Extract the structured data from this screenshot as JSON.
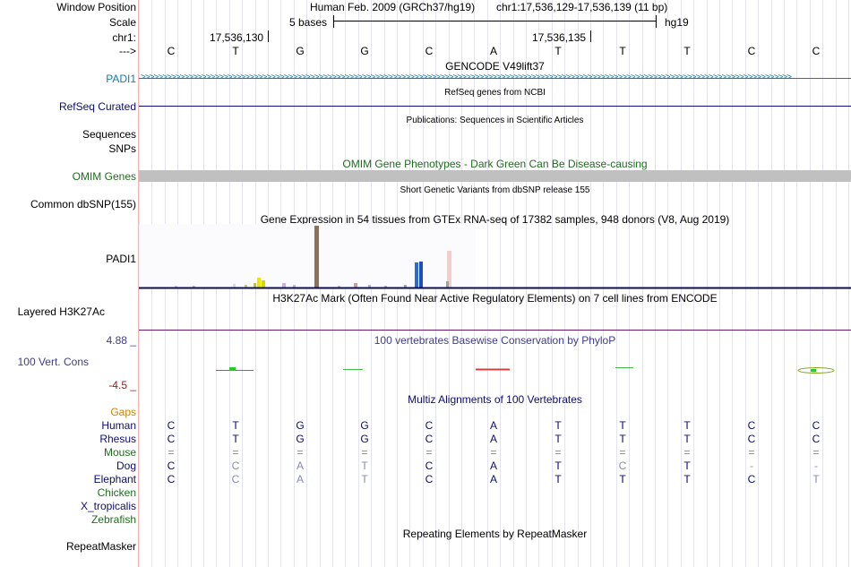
{
  "labels": {
    "window_position": "Window Position",
    "scale": "Scale",
    "chrom": "chr1:",
    "arrow": "--->",
    "padi1_gencode": "PADI1",
    "refseq": "RefSeq Curated",
    "sequences": "Sequences",
    "snps": "SNPs",
    "omim": "OMIM Genes",
    "common_dbsnp": "Common dbSNP(155)",
    "padi1_gtex": "PADI1",
    "h3k27ac": "Layered H3K27Ac",
    "cons_max": "4.88 _",
    "cons": "100 Vert. Cons",
    "cons_min": "-4.5 _",
    "gaps": "Gaps",
    "species": [
      "Human",
      "Rhesus",
      "Mouse",
      "Dog",
      "Elephant",
      "Chicken",
      "X_tropicalis",
      "Zebrafish"
    ],
    "repeatmasker": "RepeatMasker"
  },
  "header": {
    "assembly": "Human Feb. 2009 (GRCh37/hg19)",
    "position": "chr1:17,536,129-17,536,139 (11 bp)",
    "scale_text": "5 bases",
    "db": "hg19",
    "coord1": "17,536,130",
    "coord2": "17,536,135"
  },
  "bases": [
    "C",
    "T",
    "G",
    "G",
    "C",
    "A",
    "T",
    "T",
    "T",
    "C",
    "C"
  ],
  "tracks": {
    "gencode": "GENCODE V49lift37",
    "refseq": "RefSeq genes from NCBI",
    "publications": "Publications: Sequences in Scientific Articles",
    "omim": "OMIM Gene Phenotypes - Dark Green Can Be Disease-causing",
    "dbsnp": "Short Genetic Variants from dbSNP release 155",
    "gtex": "Gene Expression in 54 tissues from GTEx RNA-seq of 17382 samples, 948 donors (V8, Aug 2019)",
    "h3k27ac": "H3K27Ac Mark (Often Found Near Active Regulatory Elements) on 7 cell lines from ENCODE",
    "phylop": "100 vertebrates Basewise Conservation by PhyloP",
    "multiz": "Multiz Alignments of 100 Vertebrates",
    "repeatmasker": "Repeating Elements by RepeatMasker"
  },
  "alignment": {
    "Human": [
      "C",
      "T",
      "G",
      "G",
      "C",
      "A",
      "T",
      "T",
      "T",
      "C",
      "C"
    ],
    "Rhesus": [
      "C",
      "T",
      "G",
      "G",
      "C",
      "A",
      "T",
      "T",
      "T",
      "C",
      "C"
    ],
    "Mouse": [
      "=",
      "=",
      "=",
      "=",
      "=",
      "=",
      "=",
      "=",
      "=",
      "=",
      "="
    ],
    "Dog": [
      "C",
      "C",
      "A",
      "T",
      "C",
      "A",
      "T",
      "C",
      "T",
      "-",
      "-"
    ],
    "Elephant": [
      "C",
      "C",
      "A",
      "T",
      "C",
      "A",
      "T",
      "T",
      "T",
      "C",
      "T"
    ]
  },
  "colors": {
    "gencode": "#1f7aa0",
    "refseq": "#0c0c78",
    "omim": "#1e6e1e",
    "conservation": "#3c3c8c",
    "cons_min": "#8c2020",
    "gaps": "#d08000",
    "human": "#0c0c78",
    "mouse": "#1e6e1e",
    "mismatch": "#8888c0"
  }
}
